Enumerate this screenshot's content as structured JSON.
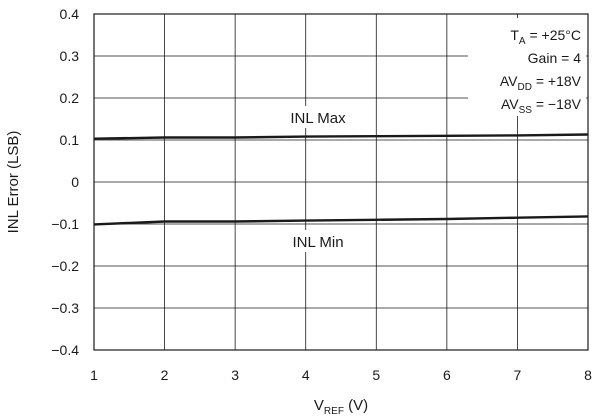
{
  "chart_data": {
    "type": "line",
    "xlabel": {
      "main": "V",
      "sub": "REF",
      "unit": " (V)"
    },
    "ylabel": "INL Error (LSB)",
    "xlim": [
      1,
      8
    ],
    "ylim": [
      -0.4,
      0.4
    ],
    "x_ticks": [
      1,
      2,
      3,
      4,
      5,
      6,
      7,
      8
    ],
    "x_tick_labels": [
      "1",
      "2",
      "3",
      "4",
      "5",
      "6",
      "7",
      "8"
    ],
    "y_ticks": [
      0.4,
      0.3,
      0.2,
      0.1,
      0,
      -0.1,
      -0.2,
      -0.3,
      -0.4
    ],
    "y_tick_labels": [
      "0.4",
      "0.3",
      "0.2",
      "0.1",
      "0",
      "−0.1",
      "−0.2",
      "−0.3",
      "−0.4"
    ],
    "grid": true,
    "series": [
      {
        "name": "INL Max",
        "color": "#1a1a1a",
        "x": [
          1,
          2,
          3,
          4,
          5,
          6,
          7,
          8
        ],
        "y": [
          0.103,
          0.106,
          0.106,
          0.108,
          0.109,
          0.11,
          0.111,
          0.113
        ]
      },
      {
        "name": "INL Min",
        "color": "#1a1a1a",
        "x": [
          1,
          2,
          3,
          4,
          5,
          6,
          7,
          8
        ],
        "y": [
          -0.101,
          -0.094,
          -0.094,
          -0.092,
          -0.09,
          -0.088,
          -0.085,
          -0.082
        ]
      }
    ],
    "annotations": {
      "inl_max": "INL Max",
      "inl_min": "INL Min"
    },
    "conditions": [
      {
        "main": "T",
        "sub": "A",
        "rest": " = +25°C"
      },
      {
        "main": "Gain = 4",
        "sub": "",
        "rest": ""
      },
      {
        "main": "AV",
        "sub": "DD",
        "rest": " = +18V"
      },
      {
        "main": "AV",
        "sub": "SS",
        "rest": " = −18V"
      }
    ]
  }
}
